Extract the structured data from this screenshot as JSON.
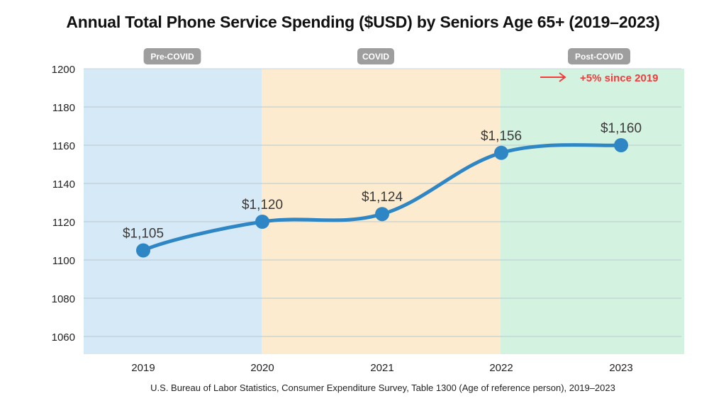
{
  "title": "Annual Total Phone Service Spending ($USD) by Seniors Age 65+ (2019–2023)",
  "source": "U.S. Bureau of Labor Statistics, Consumer Expenditure Survey, Table 1300 (Age of reference person), 2019–2023",
  "periods": [
    {
      "label": "Pre-COVID",
      "color": "#d6e9f7"
    },
    {
      "label": "COVID",
      "color": "#fdebcf"
    },
    {
      "label": "Post-COVID",
      "color": "#d3f2e0"
    }
  ],
  "annotation": {
    "text": "+5% since 2019",
    "color": "#f03c3c"
  },
  "colors": {
    "line": "#2f86c5",
    "badge": "#9e9e9e",
    "grid": "#b8c8cf"
  },
  "chart_data": {
    "type": "line",
    "title": "Annual Total Phone Service Spending ($USD) by Seniors Age 65+ (2019–2023)",
    "xlabel": "",
    "ylabel": "",
    "categories": [
      "2019",
      "2020",
      "2021",
      "2022",
      "2023"
    ],
    "values": [
      1105,
      1120,
      1124,
      1156,
      1160
    ],
    "data_labels": [
      "$1,105",
      "$1,120",
      "$1,124",
      "$1,156",
      "$1,160"
    ],
    "yticks": [
      "1060",
      "1080",
      "1100",
      "1120",
      "1140",
      "1160",
      "1180",
      "1200"
    ],
    "ylim": [
      1051,
      1200
    ],
    "grid": true,
    "legend": "none",
    "shaded_regions": [
      {
        "label": "Pre-COVID",
        "from": "2019",
        "to": "2020"
      },
      {
        "label": "COVID",
        "from": "2020",
        "to": "2022"
      },
      {
        "label": "Post-COVID",
        "from": "2022",
        "to": "2023"
      }
    ],
    "annotations": [
      "+5% since 2019"
    ]
  }
}
